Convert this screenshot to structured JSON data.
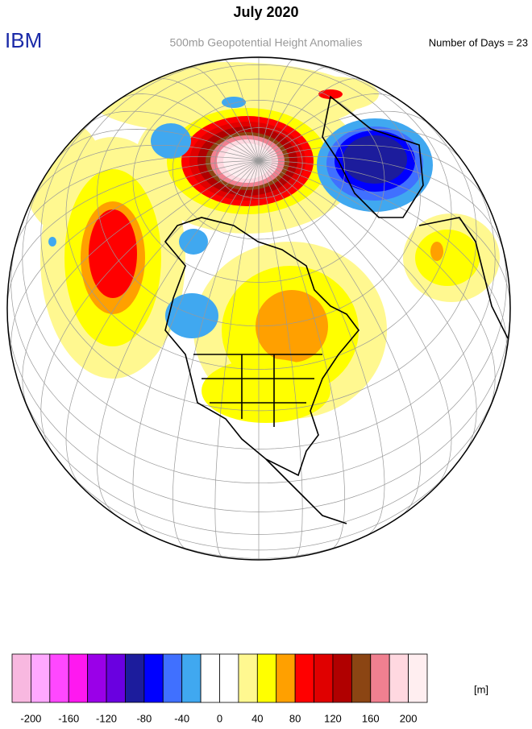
{
  "header": {
    "title": "July 2020",
    "brand": "IBM",
    "subtitle": "500mb Geopotential Height Anomalies",
    "days": "Number of Days = 23"
  },
  "colorbar": {
    "range": [
      -220,
      220
    ],
    "ticks": [
      -200,
      -160,
      -120,
      -80,
      -40,
      0,
      40,
      80,
      120,
      160,
      200
    ],
    "unit": "[m]",
    "colors": [
      "#f8b8e0",
      "#ffa8ff",
      "#ff48ff",
      "#ff18f0",
      "#9a00e8",
      "#6a00e0",
      "#1c1c9c",
      "#0000ff",
      "#4070ff",
      "#40a8f0",
      "#ffffff",
      "#ffffff",
      "#fff890",
      "#ffff00",
      "#ffa000",
      "#ff0000",
      "#e00000",
      "#b00000",
      "#8b4513",
      "#f08090",
      "#ffd8e0",
      "#ffeef0"
    ]
  }
}
